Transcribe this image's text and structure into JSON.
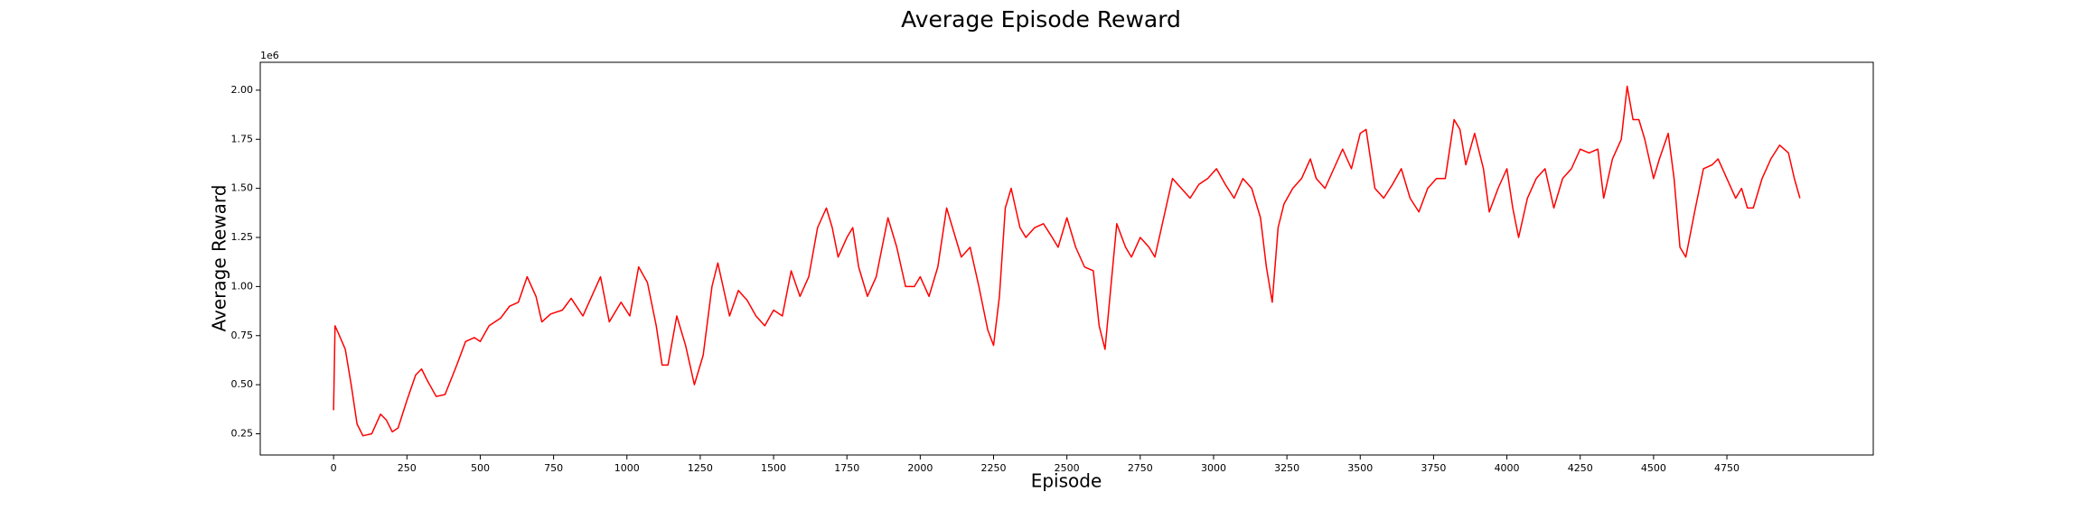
{
  "chart_data": {
    "type": "line",
    "title": "Average Episode Reward",
    "xlabel": "Episode",
    "ylabel": "Average Reward",
    "y_offset_label": "1e6",
    "color": "#ff0000",
    "x": [
      0,
      5,
      20,
      40,
      60,
      80,
      100,
      130,
      160,
      180,
      200,
      220,
      250,
      280,
      300,
      320,
      350,
      380,
      420,
      450,
      480,
      500,
      530,
      570,
      600,
      630,
      660,
      690,
      710,
      740,
      780,
      810,
      850,
      880,
      910,
      940,
      980,
      1010,
      1040,
      1070,
      1100,
      1120,
      1140,
      1170,
      1200,
      1230,
      1260,
      1290,
      1310,
      1350,
      1380,
      1410,
      1440,
      1470,
      1500,
      1530,
      1560,
      1590,
      1620,
      1650,
      1680,
      1700,
      1720,
      1750,
      1770,
      1790,
      1820,
      1850,
      1870,
      1890,
      1920,
      1950,
      1980,
      2000,
      2030,
      2060,
      2090,
      2120,
      2140,
      2170,
      2200,
      2230,
      2250,
      2270,
      2290,
      2310,
      2340,
      2360,
      2390,
      2420,
      2450,
      2470,
      2500,
      2530,
      2560,
      2590,
      2610,
      2630,
      2650,
      2670,
      2700,
      2720,
      2750,
      2780,
      2800,
      2830,
      2860,
      2890,
      2920,
      2950,
      2980,
      3010,
      3040,
      3070,
      3100,
      3130,
      3160,
      3180,
      3200,
      3220,
      3240,
      3270,
      3300,
      3330,
      3350,
      3380,
      3410,
      3440,
      3470,
      3500,
      3520,
      3550,
      3580,
      3610,
      3640,
      3670,
      3700,
      3730,
      3760,
      3790,
      3820,
      3840,
      3860,
      3890,
      3920,
      3940,
      3970,
      4000,
      4020,
      4040,
      4070,
      4100,
      4130,
      4160,
      4190,
      4220,
      4250,
      4280,
      4310,
      4330,
      4360,
      4390,
      4410,
      4430,
      4450,
      4470,
      4500,
      4520,
      4550,
      4570,
      4590,
      4610,
      4640,
      4670,
      4700,
      4720,
      4750,
      4780,
      4800,
      4820,
      4840,
      4870,
      4900,
      4930,
      4960,
      4980,
      4999
    ],
    "values": [
      0.37,
      0.8,
      0.75,
      0.68,
      0.5,
      0.3,
      0.24,
      0.25,
      0.35,
      0.32,
      0.26,
      0.28,
      0.42,
      0.55,
      0.58,
      0.52,
      0.44,
      0.45,
      0.6,
      0.72,
      0.74,
      0.72,
      0.8,
      0.84,
      0.9,
      0.92,
      1.05,
      0.95,
      0.82,
      0.86,
      0.88,
      0.94,
      0.85,
      0.95,
      1.05,
      0.82,
      0.92,
      0.85,
      1.1,
      1.02,
      0.8,
      0.6,
      0.6,
      0.85,
      0.7,
      0.5,
      0.65,
      1.0,
      1.12,
      0.85,
      0.98,
      0.93,
      0.85,
      0.8,
      0.88,
      0.85,
      1.08,
      0.95,
      1.05,
      1.3,
      1.4,
      1.3,
      1.15,
      1.25,
      1.3,
      1.1,
      0.95,
      1.05,
      1.2,
      1.35,
      1.2,
      1.0,
      1.0,
      1.05,
      0.95,
      1.1,
      1.4,
      1.25,
      1.15,
      1.2,
      1.0,
      0.78,
      0.7,
      0.95,
      1.4,
      1.5,
      1.3,
      1.25,
      1.3,
      1.32,
      1.25,
      1.2,
      1.35,
      1.2,
      1.1,
      1.08,
      0.8,
      0.68,
      1.0,
      1.32,
      1.2,
      1.15,
      1.25,
      1.2,
      1.15,
      1.35,
      1.55,
      1.5,
      1.45,
      1.52,
      1.55,
      1.6,
      1.52,
      1.45,
      1.55,
      1.5,
      1.35,
      1.1,
      0.92,
      1.3,
      1.42,
      1.5,
      1.55,
      1.65,
      1.55,
      1.5,
      1.6,
      1.7,
      1.6,
      1.78,
      1.8,
      1.5,
      1.45,
      1.52,
      1.6,
      1.45,
      1.38,
      1.5,
      1.55,
      1.55,
      1.85,
      1.8,
      1.62,
      1.78,
      1.6,
      1.38,
      1.5,
      1.6,
      1.4,
      1.25,
      1.45,
      1.55,
      1.6,
      1.4,
      1.55,
      1.6,
      1.7,
      1.68,
      1.7,
      1.45,
      1.65,
      1.75,
      2.02,
      1.85,
      1.85,
      1.75,
      1.55,
      1.65,
      1.78,
      1.55,
      1.2,
      1.15,
      1.38,
      1.6,
      1.62,
      1.65,
      1.55,
      1.45,
      1.5,
      1.4,
      1.4,
      1.55,
      1.65,
      1.72,
      1.68,
      1.55,
      1.45
    ],
    "xlim": [
      -250,
      5249
    ],
    "ylim": [
      0.142,
      2.142
    ],
    "xticks": [
      0,
      250,
      500,
      750,
      1000,
      1250,
      1500,
      1750,
      2000,
      2250,
      2500,
      2750,
      3000,
      3250,
      3500,
      3750,
      4000,
      4250,
      4500,
      4750
    ],
    "yticks": [
      0.25,
      {
        "value": 0.5,
        "label": "0.50"
      },
      0.75,
      {
        "value": 1,
        "label": "1.00"
      },
      1.25,
      {
        "value": 1.5,
        "label": "1.50"
      },
      1.75,
      {
        "value": 2,
        "label": "2.00"
      }
    ],
    "grid": false
  }
}
